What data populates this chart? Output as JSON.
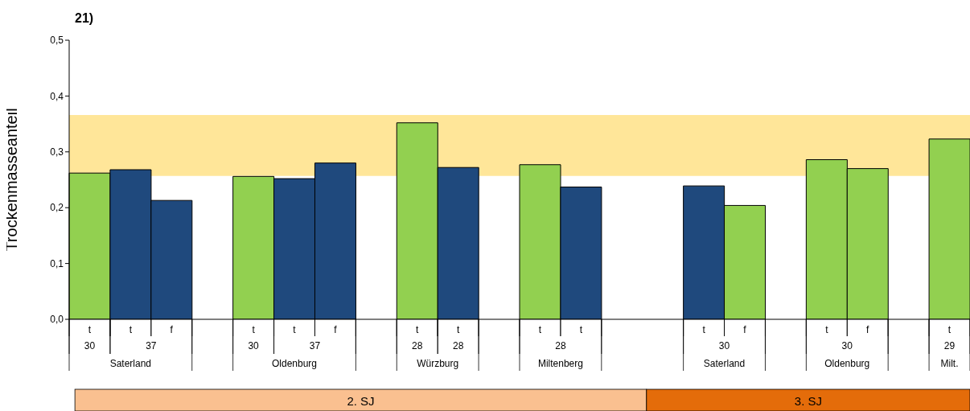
{
  "chart_data": {
    "type": "bar",
    "title": "21)",
    "ylabel": "Trockenmasseanteil",
    "categories": [
      "t",
      "t",
      "f",
      null,
      "t",
      "t",
      "f",
      null,
      "t",
      "t",
      null,
      "t",
      "t",
      null,
      null,
      "t",
      "f",
      null,
      "t",
      "f",
      null,
      "t"
    ],
    "values": [
      0.262,
      0.268,
      0.213,
      null,
      0.256,
      0.252,
      0.28,
      null,
      0.352,
      0.272,
      null,
      0.277,
      0.237,
      null,
      null,
      0.239,
      0.204,
      null,
      0.286,
      0.27,
      null,
      0.323
    ],
    "colors": [
      "#92d050",
      "#1f497d",
      "#1f497d",
      null,
      "#92d050",
      "#1f497d",
      "#1f497d",
      null,
      "#92d050",
      "#1f497d",
      null,
      "#92d050",
      "#1f497d",
      null,
      null,
      "#1f497d",
      "#92d050",
      null,
      "#92d050",
      "#92d050",
      null,
      "#92d050"
    ],
    "ylim": [
      0,
      0.5
    ],
    "yticks": [
      {
        "value": 0,
        "label": "0,0"
      },
      {
        "value": 0.1,
        "label": "0,1"
      },
      {
        "value": 0.2,
        "label": "0,2"
      },
      {
        "value": 0.3,
        "label": "0,3"
      },
      {
        "value": 0.4,
        "label": "0,4"
      },
      {
        "value": 0.5,
        "label": "0,5"
      }
    ],
    "bands": [
      {
        "axis": "y",
        "from": 0.257,
        "to": 0.366,
        "color": "#ffc000"
      }
    ],
    "grid": false,
    "legend": false,
    "annotations": [
      "30",
      "37",
      "30",
      "37",
      "28",
      "28",
      "28",
      "30",
      "30",
      "29",
      "Saterland",
      "Oldenburg",
      "Würzburg",
      "Miltenberg",
      "Saterland",
      "Oldenburg",
      "Milt.",
      "2. SJ",
      "3. SJ"
    ]
  }
}
